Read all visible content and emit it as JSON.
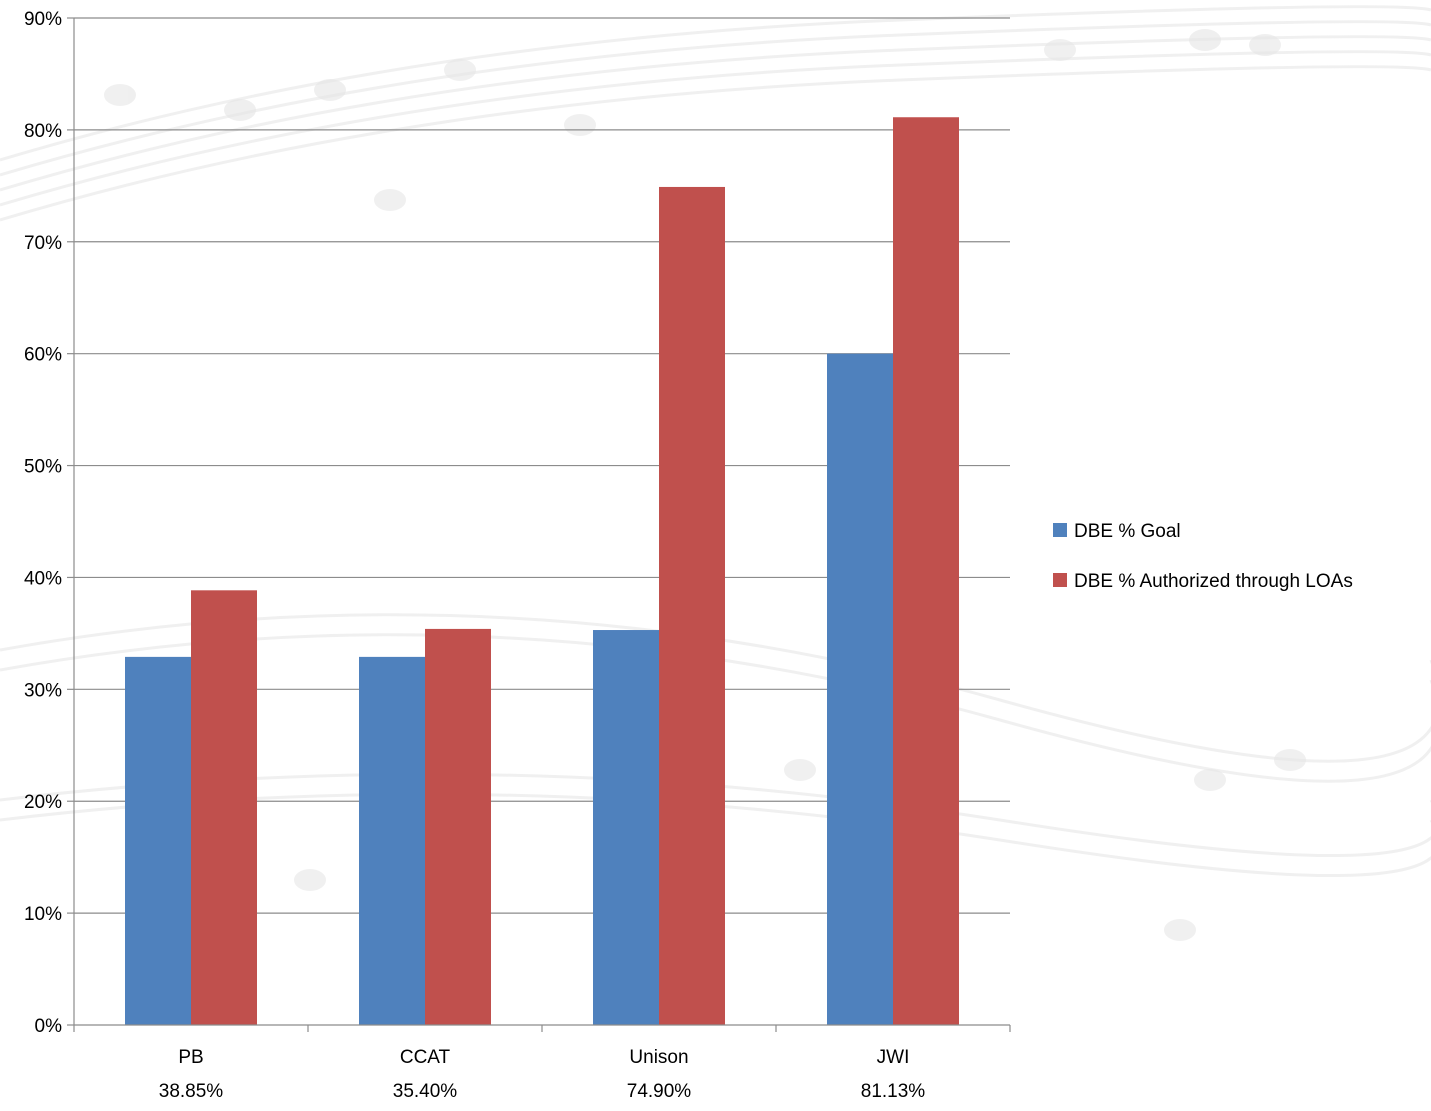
{
  "chart_data": {
    "type": "bar",
    "categories": [
      "PB",
      "CCAT",
      "Unison",
      "JWI"
    ],
    "category_sublabels": [
      "38.85%",
      "35.40%",
      "74.90%",
      "81.13%"
    ],
    "series": [
      {
        "name": "DBE % Goal",
        "values": [
          32.9,
          32.9,
          35.3,
          60.0
        ],
        "color": "#4F81BD"
      },
      {
        "name": "DBE % Authorized through LOAs",
        "values": [
          38.85,
          35.4,
          74.9,
          81.13
        ],
        "color": "#C0504D"
      }
    ],
    "ylim": [
      0,
      90
    ],
    "yticks": [
      0,
      10,
      20,
      30,
      40,
      50,
      60,
      70,
      80,
      90
    ],
    "ytick_labels": [
      "0%",
      "10%",
      "20%",
      "30%",
      "40%",
      "50%",
      "60%",
      "70%",
      "80%",
      "90%"
    ],
    "title": "",
    "xlabel": "",
    "ylabel": "",
    "grid": true,
    "legend_position": "right",
    "background": "faint musical-notes watermark"
  }
}
